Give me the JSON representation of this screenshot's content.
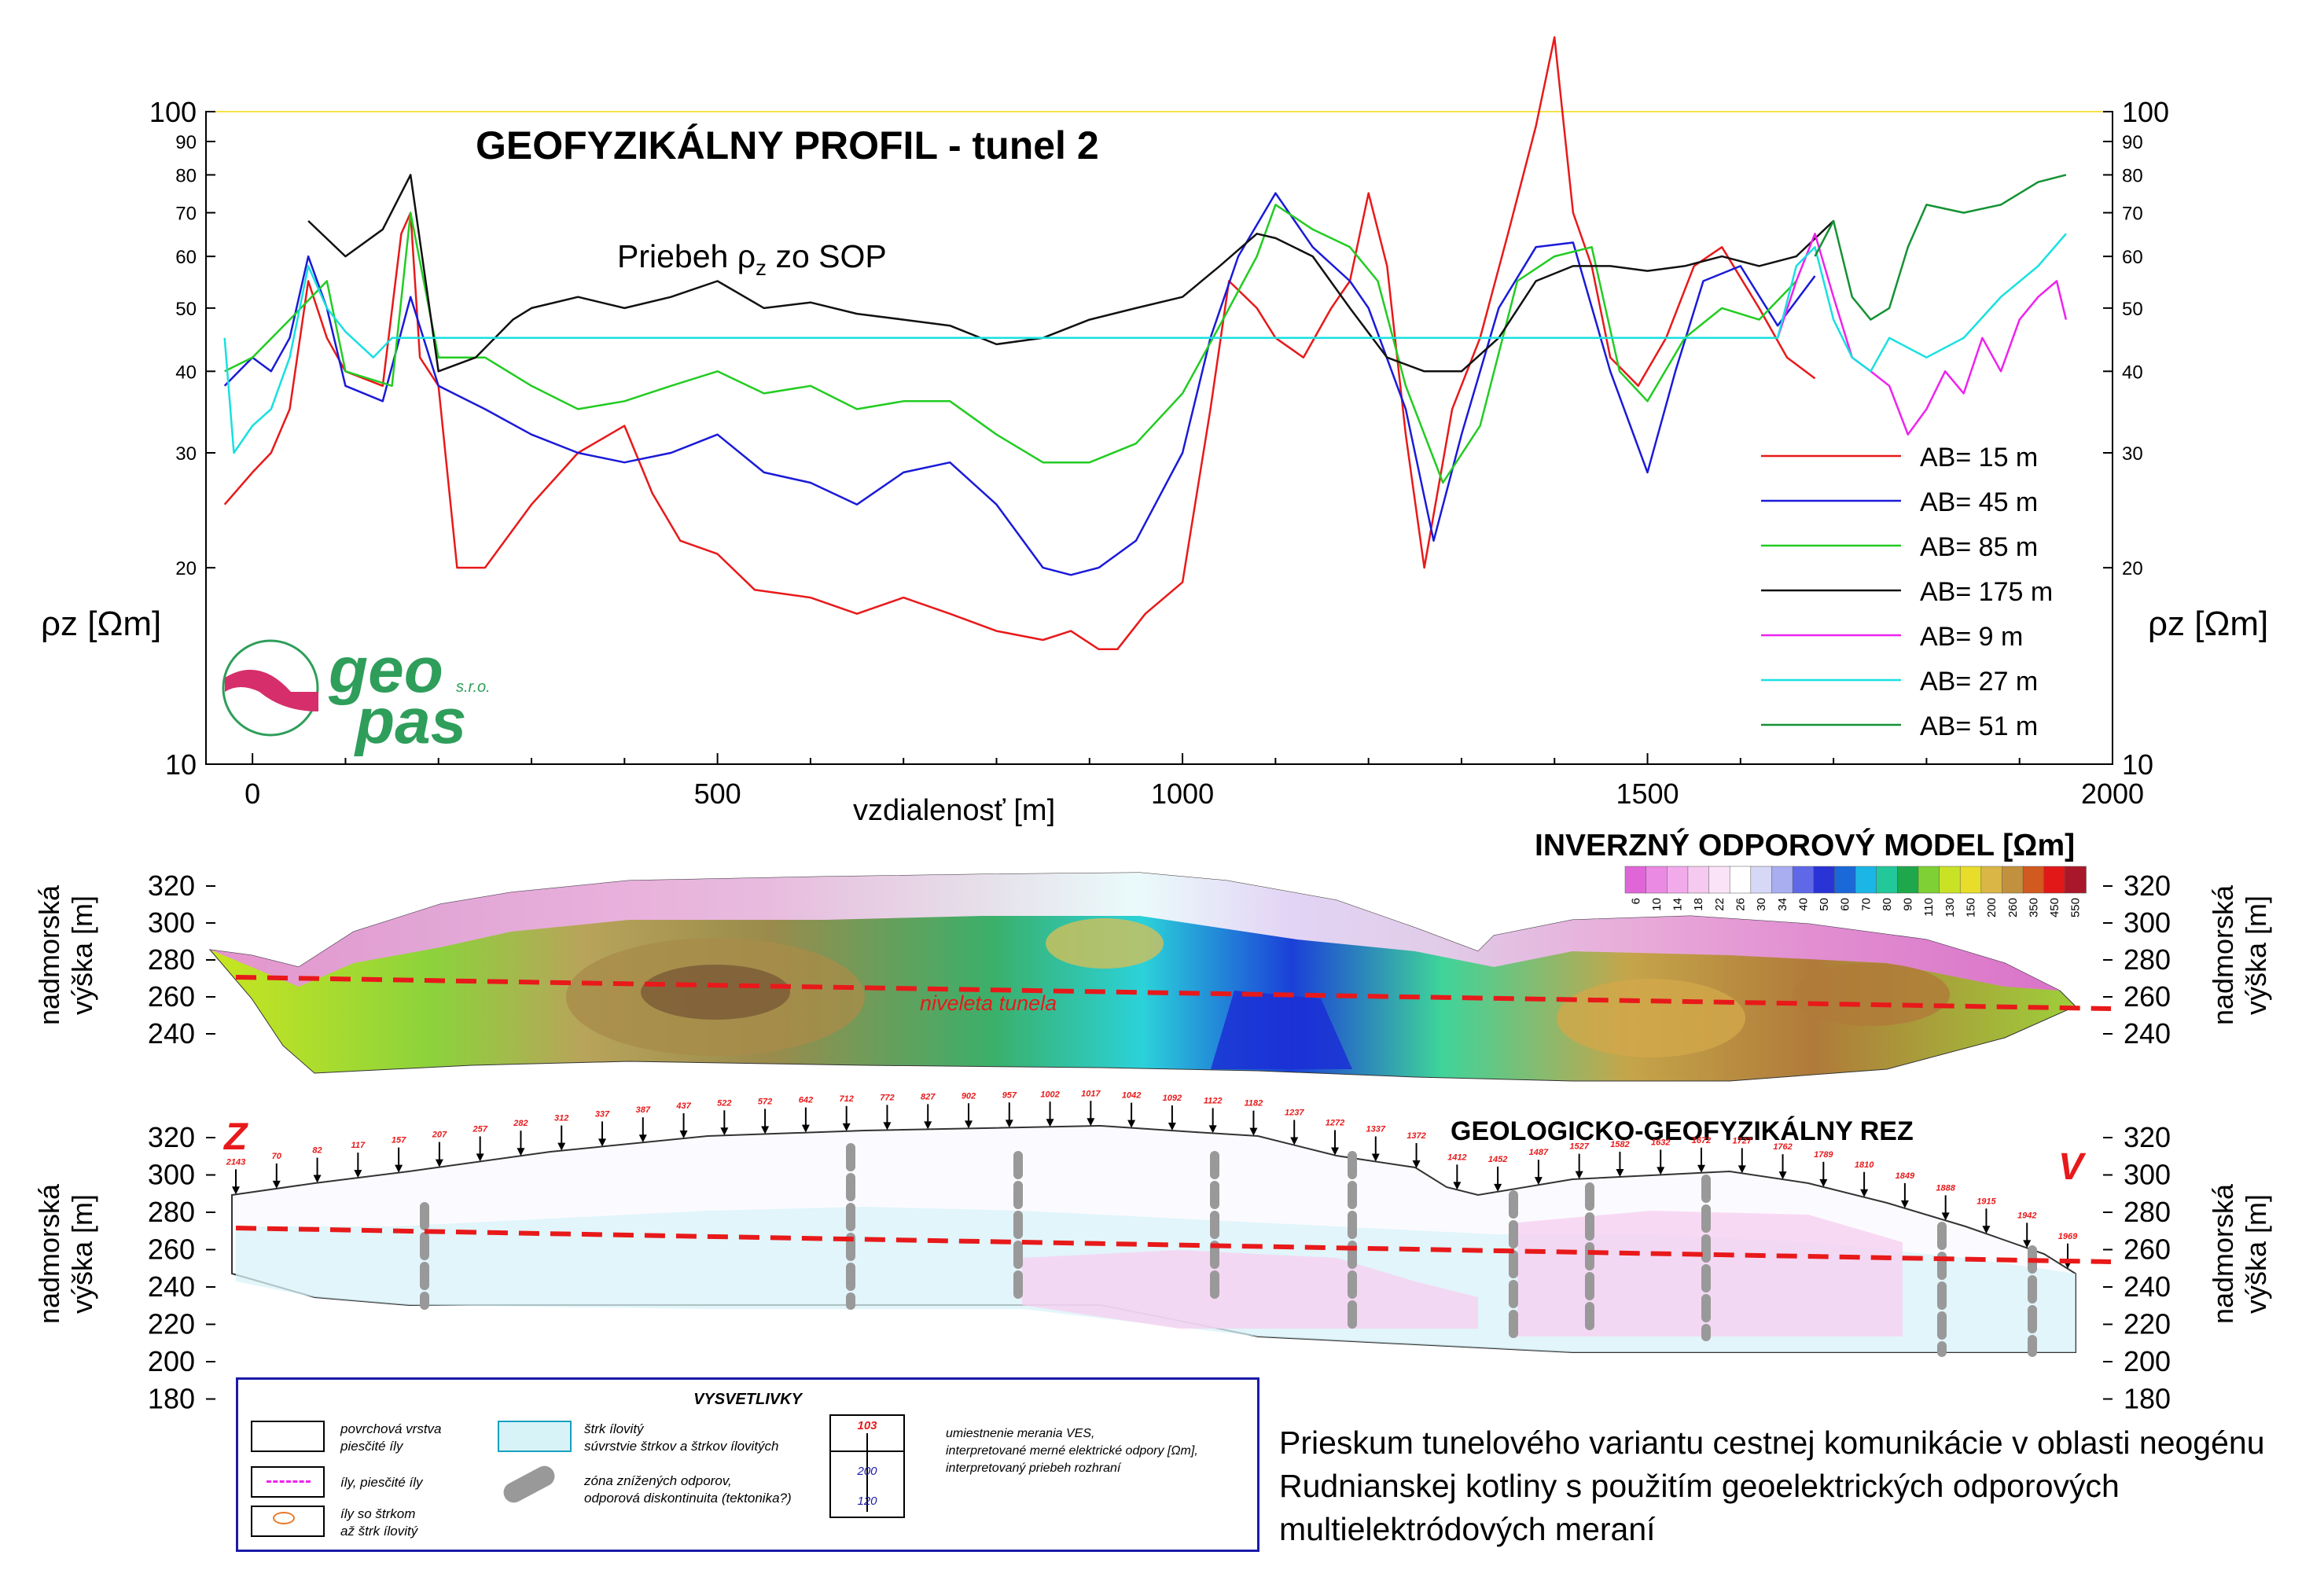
{
  "title": "GEOFYZIKÁLNY PROFIL - tunel 2",
  "subtitle_main": "Priebeh ρ",
  "subtitle_sub": "z",
  "subtitle_rest": " zo SOP",
  "logo": {
    "text1": "geo",
    "text2": "pas",
    "sro": "s.r.o."
  },
  "chart_data": [
    {
      "type": "line",
      "title": "GEOFYZIKÁLNY PROFIL - tunel 2",
      "xlabel": "vzdialenosť [m]",
      "ylabel": "ρz [Ωm]",
      "yscale": "log",
      "xlim": [
        -50,
        2000
      ],
      "ylim": [
        10,
        100
      ],
      "x_ticks": [
        "0",
        "500",
        "1000",
        "1500",
        "2000"
      ],
      "y_ticks": [
        "10",
        "20",
        "30",
        "40",
        "50",
        "60",
        "70",
        "80",
        "90",
        "100"
      ],
      "legend_position": "right",
      "series": [
        {
          "name": "AB= 15 m",
          "color": "#e8191a",
          "x": [
            -30,
            0,
            20,
            40,
            60,
            80,
            100,
            140,
            160,
            170,
            180,
            200,
            220,
            250,
            300,
            350,
            400,
            430,
            460,
            500,
            540,
            600,
            650,
            700,
            750,
            800,
            850,
            880,
            910,
            930,
            960,
            1000,
            1030,
            1050,
            1080,
            1100,
            1130,
            1160,
            1180,
            1200,
            1220,
            1240,
            1260,
            1290,
            1320,
            1350,
            1380,
            1400,
            1420,
            1440,
            1460,
            1490,
            1520,
            1550,
            1580,
            1620,
            1650,
            1680
          ],
          "values": [
            25,
            28,
            30,
            35,
            55,
            45,
            40,
            38,
            65,
            70,
            42,
            38,
            20,
            20,
            25,
            30,
            33,
            26,
            22,
            21,
            18.5,
            18,
            17,
            18,
            17,
            16,
            15.5,
            16,
            15,
            15,
            17,
            19,
            35,
            55,
            50,
            45,
            42,
            50,
            55,
            75,
            58,
            32,
            20,
            35,
            45,
            65,
            95,
            130,
            70,
            58,
            42,
            38,
            45,
            58,
            62,
            50,
            42,
            39
          ]
        },
        {
          "name": "AB= 45 m",
          "color": "#1a1ad9",
          "x": [
            -30,
            0,
            20,
            40,
            60,
            80,
            100,
            140,
            170,
            200,
            250,
            300,
            350,
            400,
            450,
            500,
            550,
            600,
            650,
            700,
            750,
            800,
            850,
            880,
            910,
            950,
            1000,
            1030,
            1060,
            1100,
            1140,
            1180,
            1200,
            1240,
            1270,
            1300,
            1340,
            1380,
            1420,
            1460,
            1500,
            1530,
            1560,
            1600,
            1640,
            1680
          ],
          "values": [
            38,
            42,
            40,
            45,
            60,
            50,
            38,
            36,
            52,
            38,
            35,
            32,
            30,
            29,
            30,
            32,
            28,
            27,
            25,
            28,
            29,
            25,
            20,
            19.5,
            20,
            22,
            30,
            45,
            60,
            75,
            62,
            55,
            50,
            35,
            22,
            32,
            50,
            62,
            63,
            40,
            28,
            40,
            55,
            58,
            47,
            56
          ]
        },
        {
          "name": "AB= 85 m",
          "color": "#22cc22",
          "x": [
            -30,
            0,
            40,
            80,
            100,
            150,
            170,
            200,
            250,
            300,
            350,
            400,
            450,
            500,
            550,
            600,
            650,
            700,
            750,
            800,
            850,
            900,
            950,
            1000,
            1040,
            1080,
            1100,
            1140,
            1180,
            1210,
            1240,
            1280,
            1320,
            1360,
            1400,
            1440,
            1470,
            1500,
            1540,
            1580,
            1620,
            1660
          ],
          "values": [
            40,
            42,
            48,
            55,
            40,
            38,
            70,
            42,
            42,
            38,
            35,
            36,
            38,
            40,
            37,
            38,
            35,
            36,
            36,
            32,
            29,
            29,
            31,
            37,
            47,
            60,
            72,
            66,
            62,
            55,
            38,
            27,
            33,
            55,
            60,
            62,
            40,
            36,
            45,
            50,
            48,
            55
          ]
        },
        {
          "name": "AB= 175 m",
          "color": "#111111",
          "x": [
            60,
            100,
            140,
            170,
            200,
            240,
            280,
            300,
            350,
            400,
            450,
            500,
            550,
            600,
            650,
            700,
            750,
            800,
            850,
            900,
            950,
            1000,
            1040,
            1080,
            1100,
            1140,
            1180,
            1220,
            1260,
            1300,
            1340,
            1380,
            1420,
            1460,
            1500,
            1540,
            1580,
            1620,
            1660,
            1700
          ],
          "values": [
            68,
            60,
            66,
            80,
            40,
            42,
            48,
            50,
            52,
            50,
            52,
            55,
            50,
            51,
            49,
            48,
            47,
            44,
            45,
            48,
            50,
            52,
            58,
            65,
            64,
            60,
            50,
            42,
            40,
            40,
            45,
            55,
            58,
            58,
            57,
            58,
            60,
            58,
            60,
            68
          ]
        },
        {
          "name": "AB= 9 m",
          "color": "#ee22ee",
          "x": [
            1640,
            1660,
            1680,
            1700,
            1720,
            1740,
            1760,
            1780,
            1800,
            1820,
            1840,
            1860,
            1880,
            1900,
            1920,
            1940,
            1950
          ],
          "values": [
            45,
            55,
            65,
            52,
            42,
            40,
            38,
            32,
            35,
            40,
            37,
            45,
            40,
            48,
            52,
            55,
            48
          ]
        },
        {
          "name": "AB= 27 m",
          "color": "#18e0e0",
          "x": [
            -30,
            -20,
            0,
            20,
            40,
            60,
            80,
            100,
            130,
            150,
            1640,
            1660,
            1680,
            1700,
            1720,
            1740,
            1760,
            1800,
            1840,
            1880,
            1920,
            1950
          ],
          "values": [
            45,
            30,
            33,
            35,
            42,
            58,
            50,
            46,
            42,
            45,
            45,
            58,
            62,
            48,
            42,
            40,
            45,
            42,
            45,
            52,
            58,
            65
          ]
        },
        {
          "name": "AB= 51 m",
          "color": "#139233",
          "x": [
            1680,
            1700,
            1720,
            1740,
            1760,
            1780,
            1800,
            1840,
            1880,
            1920,
            1950
          ],
          "values": [
            60,
            68,
            52,
            48,
            50,
            62,
            72,
            70,
            72,
            78,
            80
          ]
        }
      ]
    },
    {
      "type": "heatmap",
      "title": "INVERZNÝ ODPOROVÝ MODEL [Ωm]",
      "ylabel": "nadmorská výška [m]",
      "y_ticks": [
        "320",
        "300",
        "280",
        "260",
        "240"
      ],
      "colorbar_ticks": [
        "6",
        "10",
        "14",
        "18",
        "22",
        "26",
        "30",
        "34",
        "40",
        "50",
        "60",
        "70",
        "80",
        "90",
        "110",
        "130",
        "150",
        "200",
        "260",
        "350",
        "450",
        "550"
      ],
      "annotation": "niveleta tunela"
    },
    {
      "type": "table",
      "title": "GEOLOGICKO-GEOFYZIKÁLNY REZ",
      "ylabel": "nadmorská výška [m]",
      "y_ticks": [
        "320",
        "300",
        "280",
        "260",
        "240",
        "220",
        "200",
        "180"
      ],
      "direction_left": "Z",
      "direction_right": "V",
      "ves_labels": [
        "2143",
        "70",
        "82",
        "117",
        "157",
        "207",
        "257",
        "282",
        "312",
        "337",
        "387",
        "437",
        "522",
        "572",
        "642",
        "712",
        "772",
        "827",
        "902",
        "957",
        "1002",
        "1017",
        "1042",
        "1092",
        "1122",
        "1182",
        "1237",
        "1272",
        "1337",
        "1372",
        "1412",
        "1452",
        "1487",
        "1527",
        "1582",
        "1632",
        "1672",
        "1727",
        "1762",
        "1789",
        "1810",
        "1849",
        "1888",
        "1915",
        "1942",
        "1969"
      ]
    }
  ],
  "legend": {
    "title": "VYSVETLIVKY",
    "items": [
      {
        "text": "povrchová vrstva\npiesčité íly"
      },
      {
        "text": "íly, piesčité íly"
      },
      {
        "text": "íly so štrkom\naž štrk ílovitý"
      },
      {
        "text": "štrk ílovitý\nsúvrstvie štrkov a štrkov ílovitých"
      },
      {
        "text": "zóna znížených odporov,\nodporová diskontinuita (tektonika?)"
      },
      {
        "text": "umiestnenie merania VES,\ninterpretované merné elektrické odpory [Ωm],\ninterpretovaný priebeh rozhraní"
      }
    ],
    "ves_sample": [
      "103",
      "200",
      "120"
    ]
  },
  "caption": "Prieskum tunelového variantu cestnej komunikácie v oblasti neogénu Rudnianskej kotliny s použitím geoelektrických odporových multielektródových meraní",
  "colors": {
    "frame": "#1a1aa8",
    "accent_red": "#e8191a",
    "logo_green": "#2e9e5a",
    "logo_pink": "#d62e6a"
  }
}
